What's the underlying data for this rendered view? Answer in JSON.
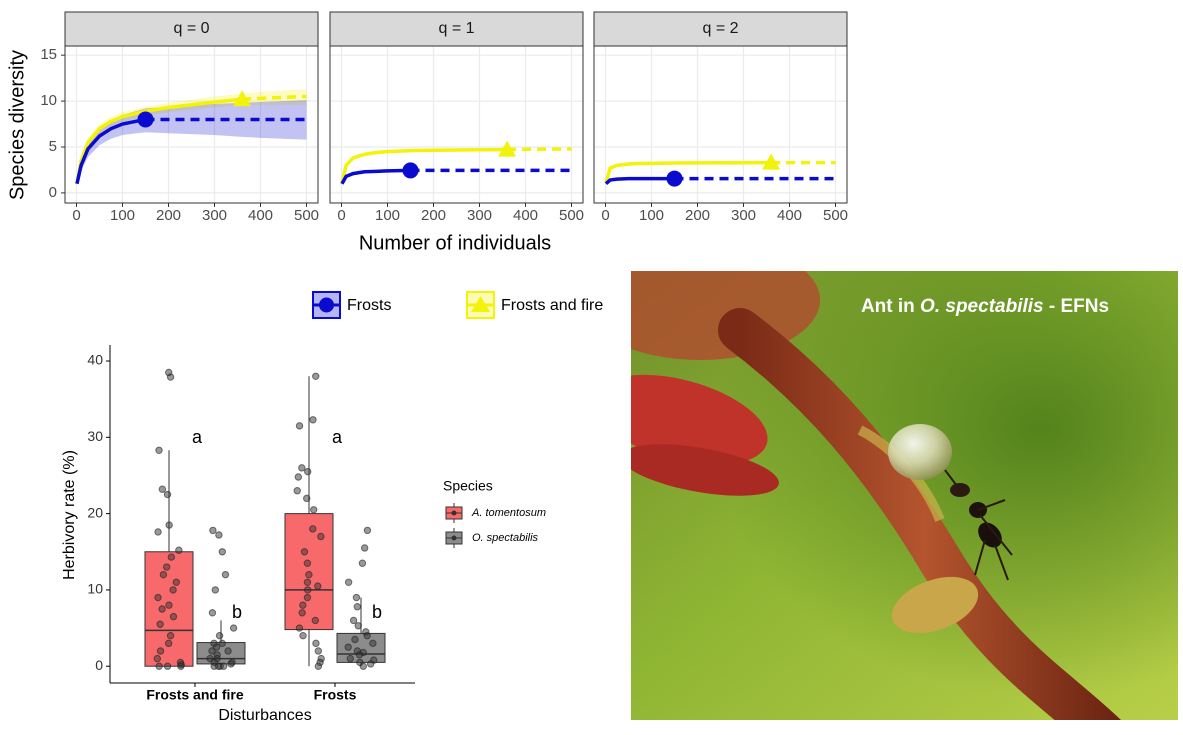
{
  "chart_data": [
    {
      "type": "line",
      "facet": true,
      "ylabel": "Species diversity",
      "xlabel": "Number of individuals",
      "xlim": [
        -25,
        525
      ],
      "xticks": [
        0,
        100,
        200,
        300,
        400,
        500
      ],
      "ylim": [
        -1.1,
        16
      ],
      "yticks": [
        0,
        5,
        10,
        15
      ],
      "grid": true,
      "x": [
        1,
        10,
        25,
        50,
        75,
        100,
        150,
        200,
        300,
        360,
        400,
        500
      ],
      "series": [
        {
          "name": "Frosts",
          "color": "#0b0bd0",
          "marker": "circle",
          "sample_size": 150
        },
        {
          "name": "Frosts and fire",
          "color": "#f2f20a",
          "marker": "triangle",
          "sample_size": 360
        }
      ],
      "panels": [
        {
          "title": "q = 0",
          "values": [
            [
              1,
              3,
              4.8,
              6.2,
              7,
              7.5,
              8,
              8,
              8,
              8,
              8,
              8
            ],
            [
              1,
              3.5,
              5.5,
              7,
              7.8,
              8.3,
              8.9,
              9.3,
              9.9,
              10.2,
              10.3,
              10.5
            ]
          ],
          "lower": [
            [
              1,
              2.4,
              3.9,
              5.2,
              5.9,
              6.3,
              6.6,
              6.5,
              6.3,
              6.1,
              6,
              5.8
            ],
            [
              1,
              3.1,
              5,
              6.5,
              7.3,
              7.8,
              8.4,
              8.8,
              9.3,
              9.6,
              9.6,
              9.6
            ]
          ],
          "upper": [
            [
              1,
              3.5,
              5.5,
              7,
              7.9,
              8.5,
              9.2,
              9.4,
              9.7,
              9.8,
              9.9,
              10.1
            ],
            [
              1,
              3.9,
              6,
              7.5,
              8.3,
              8.8,
              9.4,
              9.8,
              10.5,
              10.8,
              11,
              11.3
            ]
          ]
        },
        {
          "title": "q = 1",
          "values": [
            [
              1,
              1.8,
              2.1,
              2.3,
              2.35,
              2.4,
              2.45,
              2.45,
              2.45,
              2.45,
              2.45,
              2.45
            ],
            [
              1,
              3,
              3.8,
              4.2,
              4.4,
              4.5,
              4.6,
              4.65,
              4.7,
              4.72,
              4.75,
              4.78
            ]
          ]
        },
        {
          "title": "q = 2",
          "values": [
            [
              1,
              1.4,
              1.5,
              1.55,
              1.55,
              1.55,
              1.56,
              1.56,
              1.56,
              1.56,
              1.56,
              1.56
            ],
            [
              1,
              2.7,
              3,
              3.15,
              3.2,
              3.22,
              3.25,
              3.27,
              3.28,
              3.3,
              3.3,
              3.3
            ]
          ]
        }
      ]
    },
    {
      "type": "box",
      "ylabel": "Herbivory rate (%)",
      "xlabel": "Disturbances",
      "legend_title": "Species",
      "categories": [
        "Frosts and fire",
        "Frosts"
      ],
      "ylim": [
        -2.2,
        42.1
      ],
      "yticks": [
        0,
        10,
        20,
        30,
        40
      ],
      "series": [
        {
          "name": "A. tomentosum",
          "color": "#f8696b",
          "boxes": [
            {
              "min": 0,
              "q1": 0,
              "median": 4.7,
              "q3": 15,
              "max": 28.3,
              "letter": "a",
              "points": [
                38.5,
                37.9,
                28.3,
                23.2,
                22.5,
                18.5,
                17.6,
                15.2,
                14.3,
                13,
                12,
                11,
                10,
                9,
                8,
                7.5,
                6.5,
                5.5,
                4,
                3,
                2,
                1,
                0.5,
                0.2,
                0,
                0,
                0
              ]
            },
            {
              "min": 0,
              "q1": 4.8,
              "median": 10,
              "q3": 20,
              "max": 38,
              "letter": "a",
              "points": [
                38,
                32.3,
                31.5,
                26,
                25.5,
                24.8,
                23,
                22,
                20.5,
                18,
                17,
                15,
                13.5,
                12,
                11,
                10.5,
                10,
                9,
                8,
                7,
                6,
                5,
                4,
                3,
                2,
                1,
                0.5,
                0
              ]
            }
          ]
        },
        {
          "name": "O. spectabilis",
          "color": "#8c8c8c",
          "boxes": [
            {
              "min": 0,
              "q1": 0.3,
              "median": 1,
              "q3": 3.1,
              "max": 6,
              "letter": "b",
              "points": [
                17.8,
                17.2,
                15,
                12,
                10,
                7,
                5,
                4,
                3,
                3,
                2.5,
                2,
                2,
                1.5,
                1,
                1,
                0.5,
                0.5,
                0.3,
                0,
                0,
                0,
                0
              ]
            },
            {
              "min": 0,
              "q1": 0.5,
              "median": 1.6,
              "q3": 4.3,
              "max": 9,
              "letter": "b",
              "points": [
                17.8,
                15.5,
                13.5,
                11,
                9,
                7.8,
                6,
                5.3,
                4.5,
                4,
                3.5,
                3,
                2.5,
                2,
                1.8,
                1.5,
                1,
                0.8,
                0.5,
                0.3,
                0
              ]
            }
          ]
        }
      ]
    }
  ],
  "photo": {
    "caption": [
      "Ant in ",
      "O. spectabilis",
      " - EFNs"
    ]
  }
}
